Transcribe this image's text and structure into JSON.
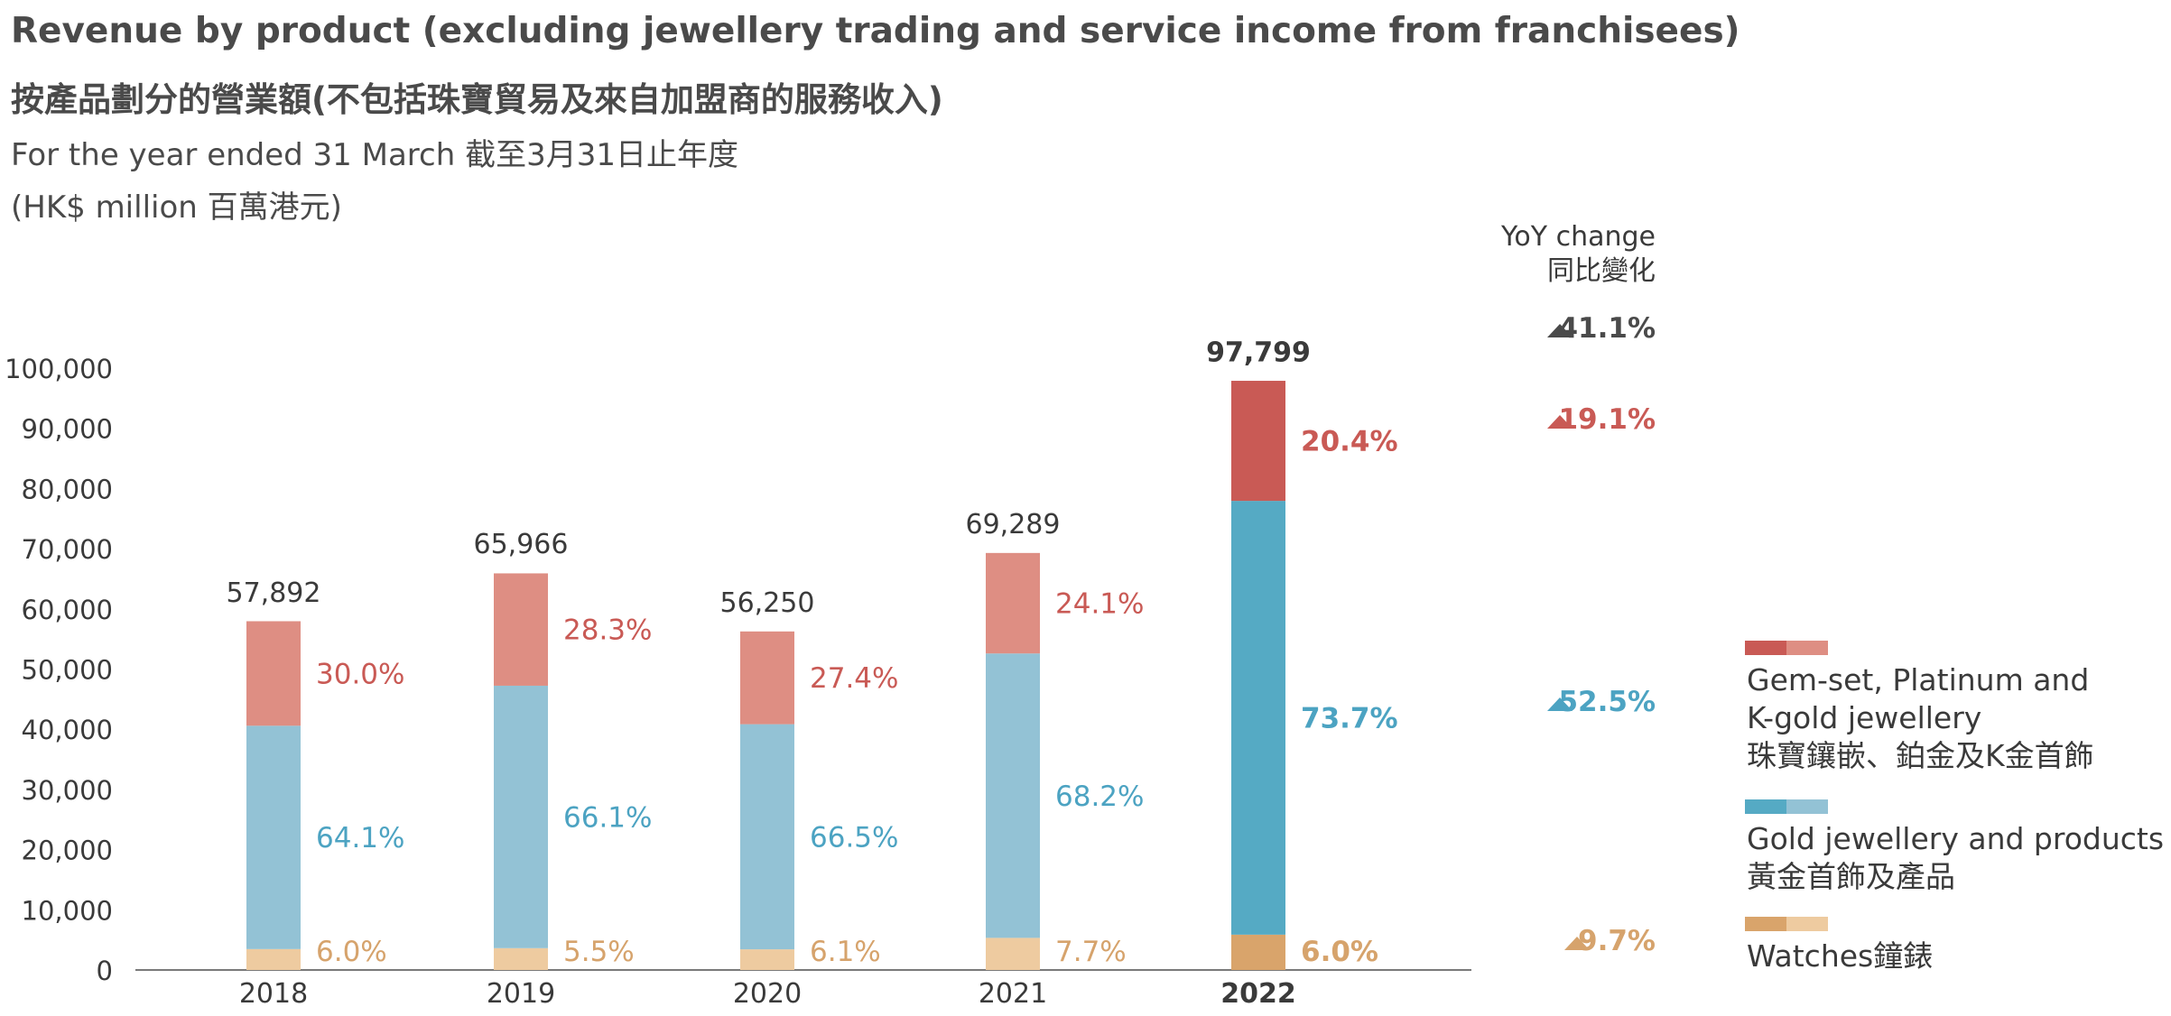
{
  "header": {
    "title_en": "Revenue by product (excluding jewellery trading and service income from franchisees)",
    "title_zh": "按產品劃分的營業額(不包括珠寶貿易及來自加盟商的服務收入)",
    "period": "For the year ended 31 March 截至3月31日止年度",
    "unit": "(HK$ million 百萬港元)"
  },
  "chart_data": {
    "type": "bar",
    "stacked": true,
    "categories": [
      "2018",
      "2019",
      "2020",
      "2021",
      "2022"
    ],
    "highlight_category": "2022",
    "totals": [
      57892,
      65966,
      56250,
      69289,
      97799
    ],
    "total_labels": [
      "57,892",
      "65,966",
      "56,250",
      "69,289",
      "97,799"
    ],
    "series": [
      {
        "key": "watches",
        "share_pct": [
          6.0,
          5.5,
          6.1,
          7.7,
          6.0
        ],
        "share_labels": [
          "6.0%",
          "5.5%",
          "6.1%",
          "7.7%",
          "6.0%"
        ],
        "color": "#EECBA0",
        "highlight_color": "#D9A46B",
        "label_color": "#D6A36C"
      },
      {
        "key": "gold",
        "share_pct": [
          64.1,
          66.1,
          66.5,
          68.2,
          73.7
        ],
        "share_labels": [
          "64.1%",
          "66.1%",
          "66.5%",
          "68.2%",
          "73.7%"
        ],
        "color": "#93C2D5",
        "highlight_color": "#55AAC4",
        "label_color": "#4CA3C2"
      },
      {
        "key": "gemset",
        "share_pct": [
          30.0,
          28.3,
          27.4,
          24.1,
          20.4
        ],
        "share_labels": [
          "30.0%",
          "28.3%",
          "27.4%",
          "24.1%",
          "20.4%"
        ],
        "color": "#DE8E83",
        "highlight_color": "#C95A55",
        "label_color": "#C95A55"
      }
    ],
    "ylim": [
      0,
      100000
    ],
    "yticks": [
      0,
      10000,
      20000,
      30000,
      40000,
      50000,
      60000,
      70000,
      80000,
      90000,
      100000
    ],
    "ytick_labels": [
      "0",
      "10,000",
      "20,000",
      "30,000",
      "40,000",
      "50,000",
      "60,000",
      "70,000",
      "80,000",
      "90,000",
      "100,000"
    ],
    "grid": false,
    "yoy": {
      "header_en": "YoY change",
      "header_zh": "同比變化",
      "rows": [
        {
          "key": "total",
          "value": "41.1%",
          "color": "#4A4A4A"
        },
        {
          "key": "gemset",
          "value": "19.1%",
          "color": "#C95A55"
        },
        {
          "key": "gold",
          "value": "52.5%",
          "color": "#4CA3C2"
        },
        {
          "key": "watches",
          "value": "9.7%",
          "color": "#D6A36C"
        }
      ]
    },
    "legend": {
      "position": "right",
      "items": [
        {
          "key": "gemset",
          "lines": [
            "Gem-set, Platinum and",
            "K-gold jewellery",
            "珠寶鑲嵌、鉑金及K金首飾"
          ],
          "colors": [
            "#C95A55",
            "#DE8E83"
          ]
        },
        {
          "key": "gold",
          "lines": [
            "Gold jewellery and products",
            "黃金首飾及產品"
          ],
          "colors": [
            "#55AAC4",
            "#93C2D5"
          ]
        },
        {
          "key": "watches",
          "lines": [
            "Watches鐘錶"
          ],
          "colors": [
            "#D9A46B",
            "#EECBA0"
          ]
        }
      ]
    }
  }
}
